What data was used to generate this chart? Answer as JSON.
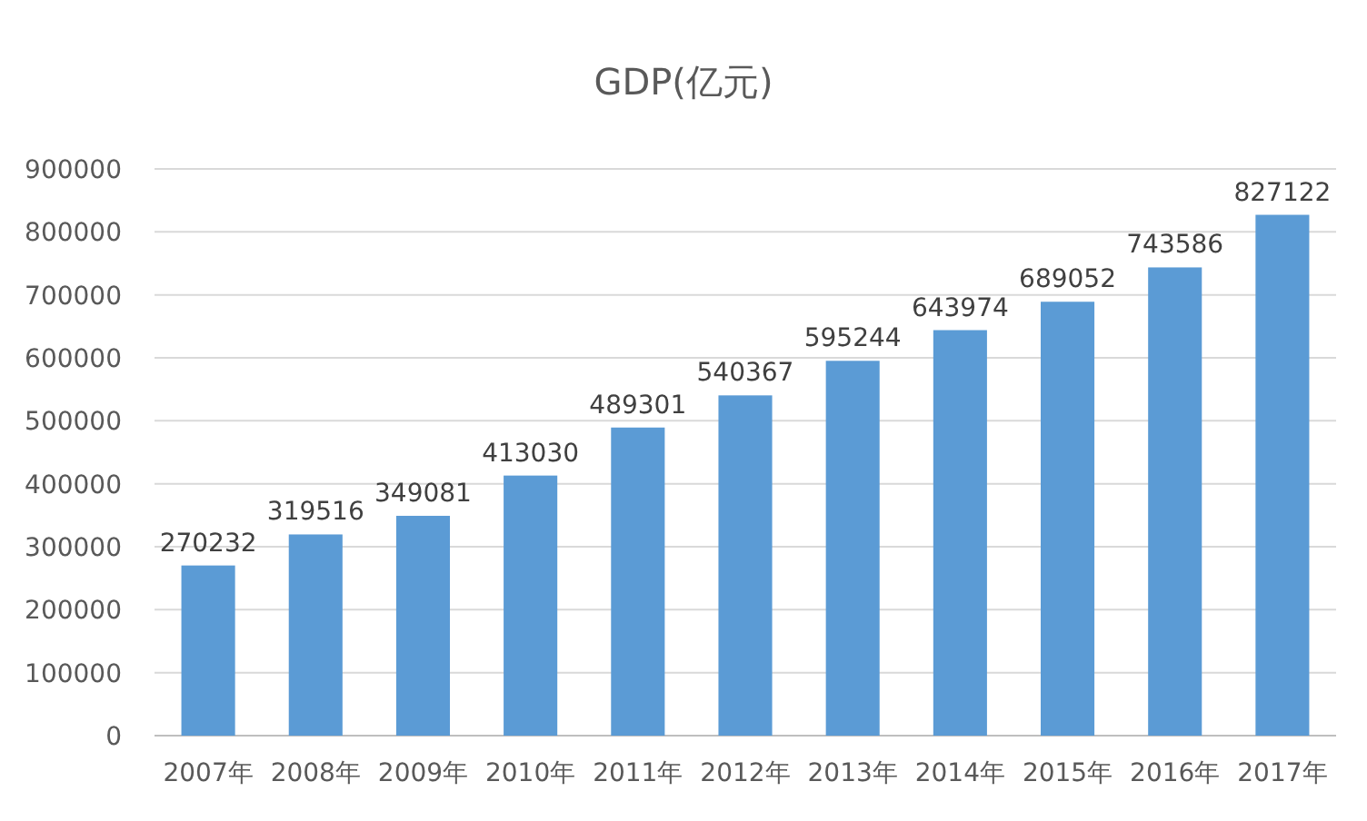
{
  "chart_data": {
    "type": "bar",
    "title": "GDP(亿元)",
    "categories": [
      "2007年",
      "2008年",
      "2009年",
      "2010年",
      "2011年",
      "2012年",
      "2013年",
      "2014年",
      "2015年",
      "2016年",
      "2017年"
    ],
    "values": [
      270232,
      319516,
      349081,
      413030,
      489301,
      540367,
      595244,
      643974,
      689052,
      743586,
      827122
    ],
    "color": "#5b9bd5",
    "ylim": [
      0,
      900000
    ],
    "yticks": [
      0,
      100000,
      200000,
      300000,
      400000,
      500000,
      600000,
      700000,
      800000,
      900000
    ],
    "grid": "y",
    "data_labels": true
  }
}
